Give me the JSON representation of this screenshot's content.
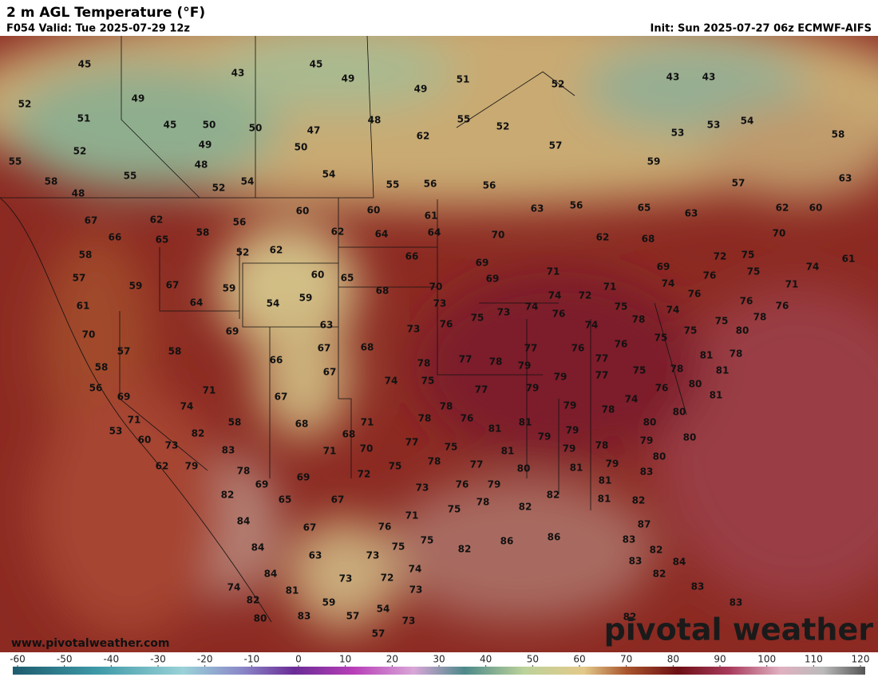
{
  "header": {
    "title": "2 m AGL Temperature (°F)",
    "valid": "F054 Valid: Tue 2025-07-29 12z",
    "init": "Init: Sun 2025-07-27 06z ECMWF-AIFS"
  },
  "temperature_labels": [
    45,
    43,
    45,
    49,
    49,
    51,
    52,
    43,
    43,
    52,
    49,
    51,
    45,
    50,
    50,
    47,
    48,
    55,
    52,
    53,
    54,
    58,
    53,
    52,
    49,
    50,
    62,
    57,
    55,
    48,
    55,
    54,
    54,
    59,
    57,
    63,
    58,
    48,
    52,
    55,
    56,
    56,
    67,
    62,
    56,
    60,
    60,
    61,
    63,
    56,
    65,
    63,
    62,
    60,
    66,
    65,
    58,
    62,
    64,
    64,
    70,
    62,
    68,
    70,
    58,
    52,
    62,
    66,
    69,
    72,
    75,
    74,
    61,
    57,
    59,
    67,
    59,
    60,
    65,
    68,
    70,
    69,
    71,
    69,
    76,
    75,
    61,
    64,
    54,
    59,
    73,
    74,
    74,
    72,
    71,
    74,
    76,
    76,
    71,
    76,
    70,
    69,
    63,
    73,
    76,
    75,
    73,
    76,
    75,
    78,
    74,
    75,
    78,
    75,
    80,
    57,
    58,
    67,
    68,
    66,
    78,
    77,
    78,
    77,
    76,
    74,
    76,
    75,
    81,
    78,
    58,
    67,
    74,
    75,
    79,
    79,
    77,
    77,
    75,
    78,
    81,
    56,
    71,
    67,
    77,
    79,
    80,
    76,
    81,
    69,
    74,
    79,
    78,
    74,
    80,
    71,
    58,
    68,
    71,
    78,
    78,
    76,
    81,
    80,
    53,
    82,
    68,
    81,
    79,
    79,
    78,
    79,
    80,
    60,
    73,
    83,
    71,
    70,
    77,
    75,
    79,
    62,
    79,
    78,
    72,
    75,
    78,
    77,
    81,
    80,
    81,
    79,
    80,
    83,
    69,
    69,
    73,
    76,
    79,
    81,
    82,
    65,
    67,
    78,
    82,
    82,
    81,
    82,
    71,
    75,
    84,
    67,
    76,
    87,
    84,
    75,
    75,
    82,
    86,
    86,
    83,
    82,
    63,
    73,
    84,
    83,
    84,
    73,
    72,
    74,
    82,
    74,
    81,
    73,
    83,
    82,
    59,
    54,
    83,
    80,
    83,
    57,
    73,
    82,
    57
  ],
  "colorbar": {
    "ticks": [
      -60,
      -50,
      -40,
      -30,
      -20,
      -10,
      0,
      10,
      20,
      30,
      40,
      50,
      60,
      70,
      80,
      90,
      100,
      110,
      120
    ]
  },
  "watermark": {
    "url": "www.pivotalweather.com",
    "brand": "pivotal weather"
  }
}
